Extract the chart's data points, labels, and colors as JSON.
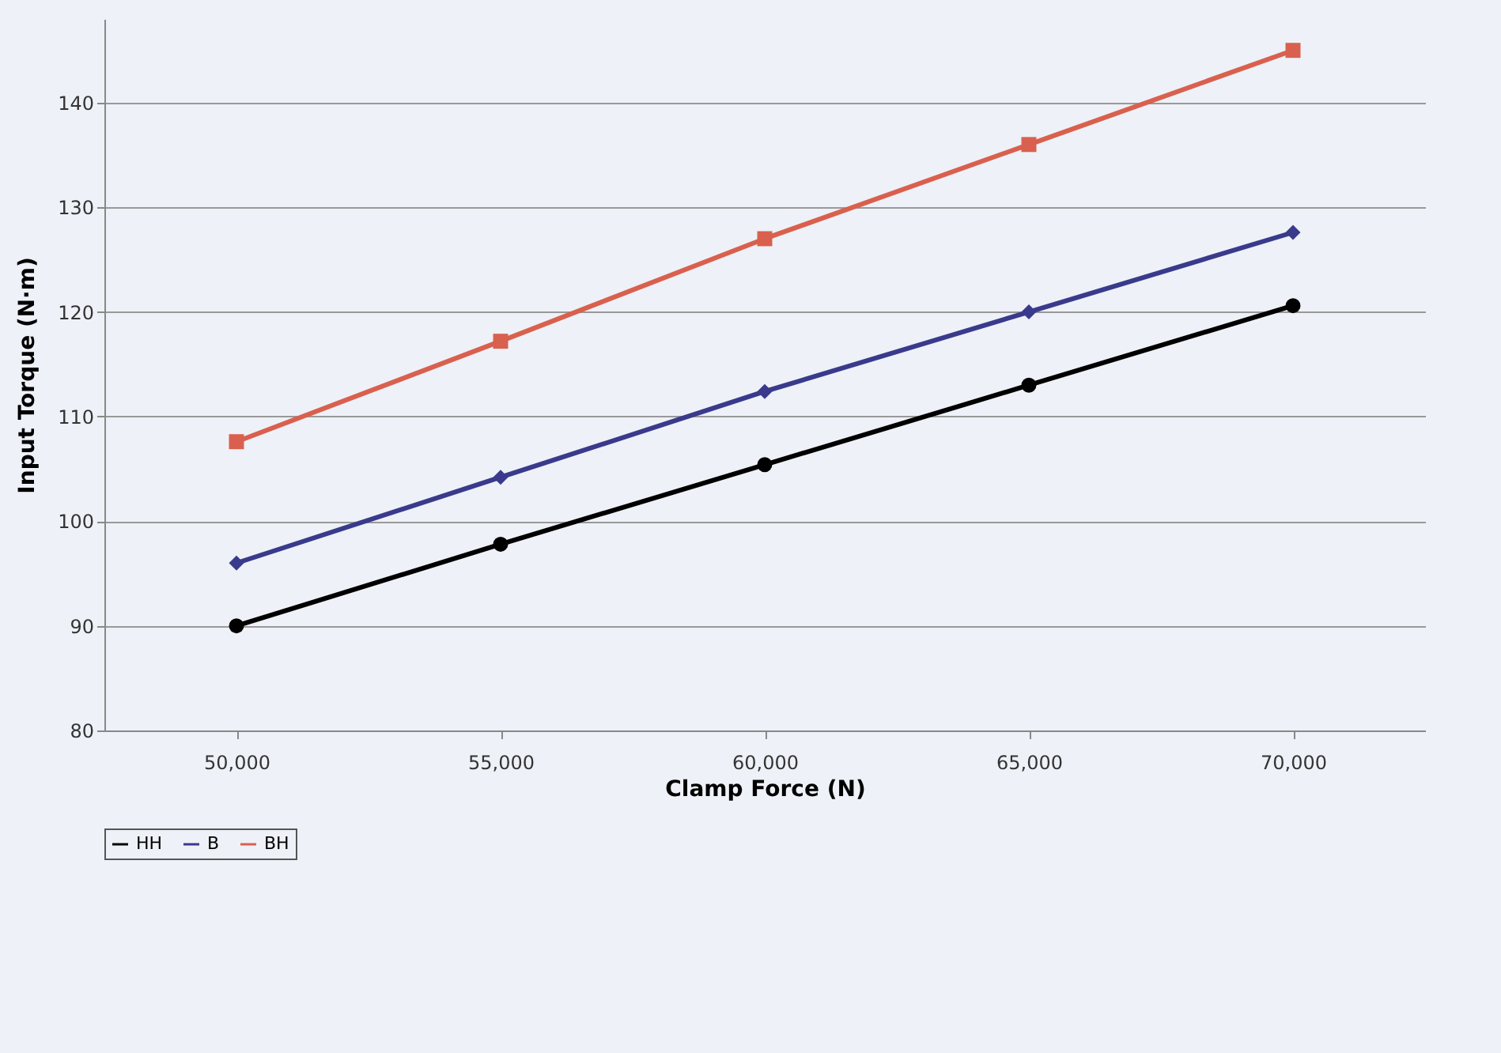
{
  "chart_data": {
    "type": "line",
    "xlabel": "Clamp Force (N)",
    "ylabel": "Input Torque (N·m)",
    "categories": [
      "50,000",
      "55,000",
      "60,000",
      "65,000",
      "70,000"
    ],
    "series": [
      {
        "name": "HH",
        "color": "#000000",
        "marker": "circle",
        "values": [
          90,
          97.8,
          105.4,
          113,
          120.6
        ]
      },
      {
        "name": "B",
        "color": "#3a3a8c",
        "marker": "diamond",
        "values": [
          96,
          104.2,
          112.4,
          120,
          127.6
        ]
      },
      {
        "name": "BH",
        "color": "#d9604e",
        "marker": "square",
        "values": [
          107.6,
          117.2,
          127,
          136,
          145
        ]
      }
    ],
    "ylim": [
      80,
      148
    ],
    "yticks": [
      80,
      90,
      100,
      110,
      120,
      130,
      140
    ],
    "grid": "y",
    "legend": "bottom"
  }
}
